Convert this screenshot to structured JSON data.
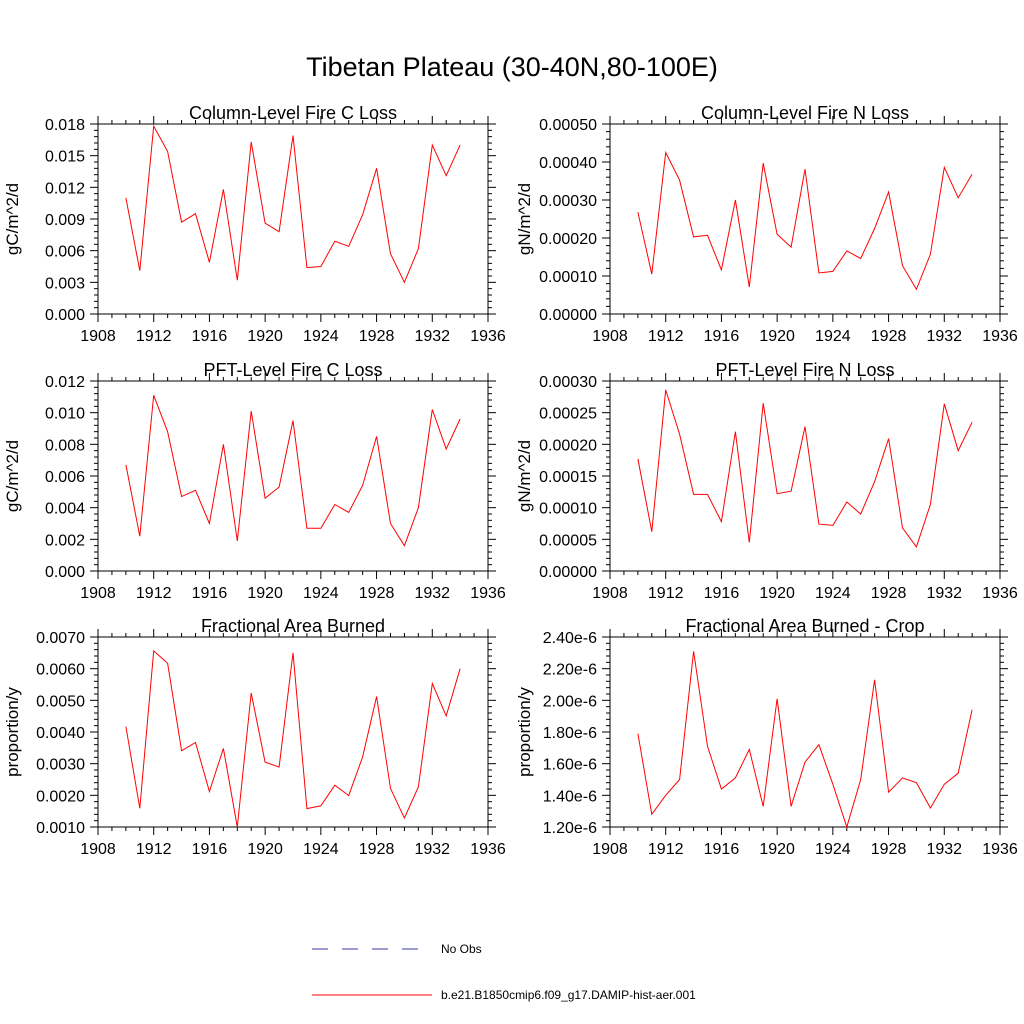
{
  "title": "Tibetan Plateau (30-40N,80-100E)",
  "colors": {
    "model": "#ff0000",
    "obs": "#3a3aa0",
    "axis": "#000000"
  },
  "legend": [
    {
      "label": "No Obs",
      "style": "dashed",
      "color": "#3a3aa0"
    },
    {
      "label": "b.e21.B1850cmip6.f09_g17.DAMIP-hist-aer.001",
      "style": "solid",
      "color": "#ff0000"
    }
  ],
  "chart_data": [
    {
      "type": "line",
      "title": "Column-Level Fire C Loss",
      "xlabel": "",
      "ylabel": "gC/m^2/d",
      "xlim": [
        1908,
        1936
      ],
      "ylim": [
        0.0,
        0.018
      ],
      "x_ticks": [
        "1908",
        "1912",
        "1916",
        "1920",
        "1924",
        "1928",
        "1932",
        "1936"
      ],
      "y_ticks": [
        "0.000",
        "0.003",
        "0.006",
        "0.009",
        "0.012",
        "0.015",
        "0.018"
      ],
      "x": [
        1910,
        1911,
        1912,
        1913,
        1914,
        1915,
        1916,
        1917,
        1918,
        1919,
        1920,
        1921,
        1922,
        1923,
        1924,
        1925,
        1926,
        1927,
        1928,
        1929,
        1930,
        1931,
        1932,
        1933,
        1934
      ],
      "series": [
        {
          "values": [
            0.011,
            0.0041,
            0.0178,
            0.0154,
            0.0087,
            0.0095,
            0.0049,
            0.0118,
            0.0032,
            0.0163,
            0.0086,
            0.0078,
            0.0169,
            0.0044,
            0.0045,
            0.0069,
            0.0064,
            0.0094,
            0.0138,
            0.0057,
            0.003,
            0.0062,
            0.016,
            0.0131,
            0.016
          ]
        }
      ]
    },
    {
      "type": "line",
      "title": "Column-Level Fire N Loss",
      "xlabel": "",
      "ylabel": "gN/m^2/d",
      "xlim": [
        1908,
        1936
      ],
      "ylim": [
        0.0,
        0.0005
      ],
      "x_ticks": [
        "1908",
        "1912",
        "1916",
        "1920",
        "1924",
        "1928",
        "1932",
        "1936"
      ],
      "y_ticks": [
        "0.00000",
        "0.00010",
        "0.00020",
        "0.00030",
        "0.00040",
        "0.00050"
      ],
      "x": [
        1910,
        1911,
        1912,
        1913,
        1914,
        1915,
        1916,
        1917,
        1918,
        1919,
        1920,
        1921,
        1922,
        1923,
        1924,
        1925,
        1926,
        1927,
        1928,
        1929,
        1930,
        1931,
        1932,
        1933,
        1934
      ],
      "series": [
        {
          "values": [
            0.000268,
            0.000105,
            0.000425,
            0.000352,
            0.000203,
            0.000207,
            0.000116,
            0.0003,
            7.1e-05,
            0.000397,
            0.00021,
            0.000176,
            0.000381,
            0.000108,
            0.000112,
            0.000166,
            0.000146,
            0.000225,
            0.000321,
            0.000127,
            6.5e-05,
            0.000157,
            0.000386,
            0.000306,
            0.000368
          ]
        }
      ]
    },
    {
      "type": "line",
      "title": "PFT-Level Fire C Loss",
      "xlabel": "",
      "ylabel": "gC/m^2/d",
      "xlim": [
        1908,
        1936
      ],
      "ylim": [
        0.0,
        0.012
      ],
      "x_ticks": [
        "1908",
        "1912",
        "1916",
        "1920",
        "1924",
        "1928",
        "1932",
        "1936"
      ],
      "y_ticks": [
        "0.000",
        "0.002",
        "0.004",
        "0.006",
        "0.008",
        "0.010",
        "0.012"
      ],
      "x": [
        1910,
        1911,
        1912,
        1913,
        1914,
        1915,
        1916,
        1917,
        1918,
        1919,
        1920,
        1921,
        1922,
        1923,
        1924,
        1925,
        1926,
        1927,
        1928,
        1929,
        1930,
        1931,
        1932,
        1933,
        1934
      ],
      "series": [
        {
          "values": [
            0.0067,
            0.0022,
            0.0111,
            0.0088,
            0.0047,
            0.0051,
            0.003,
            0.008,
            0.0019,
            0.0101,
            0.0046,
            0.0053,
            0.0095,
            0.0027,
            0.0027,
            0.0042,
            0.0037,
            0.0054,
            0.0085,
            0.003,
            0.0016,
            0.004,
            0.0102,
            0.0077,
            0.0096
          ]
        }
      ]
    },
    {
      "type": "line",
      "title": "PFT-Level Fire N Loss",
      "xlabel": "",
      "ylabel": "gN/m^2/d",
      "xlim": [
        1908,
        1936
      ],
      "ylim": [
        0.0,
        0.0003
      ],
      "x_ticks": [
        "1908",
        "1912",
        "1916",
        "1920",
        "1924",
        "1928",
        "1932",
        "1936"
      ],
      "y_ticks": [
        "0.00000",
        "0.00005",
        "0.00010",
        "0.00015",
        "0.00020",
        "0.00025",
        "0.00030"
      ],
      "x": [
        1910,
        1911,
        1912,
        1913,
        1914,
        1915,
        1916,
        1917,
        1918,
        1919,
        1920,
        1921,
        1922,
        1923,
        1924,
        1925,
        1926,
        1927,
        1928,
        1929,
        1930,
        1931,
        1932,
        1933,
        1934
      ],
      "series": [
        {
          "values": [
            0.000177,
            6.2e-05,
            0.000286,
            0.000216,
            0.000121,
            0.000121,
            7.8e-05,
            0.00022,
            4.5e-05,
            0.000265,
            0.000122,
            0.000126,
            0.000228,
            7.4e-05,
            7.2e-05,
            0.000109,
            9e-05,
            0.000141,
            0.000209,
            6.8e-05,
            3.8e-05,
            0.000105,
            0.000264,
            0.00019,
            0.000235
          ]
        }
      ]
    },
    {
      "type": "line",
      "title": "Fractional Area Burned",
      "xlabel": "",
      "ylabel": "proportion/y",
      "xlim": [
        1908,
        1936
      ],
      "ylim": [
        0.001,
        0.007
      ],
      "x_ticks": [
        "1908",
        "1912",
        "1916",
        "1920",
        "1924",
        "1928",
        "1932",
        "1936"
      ],
      "y_ticks": [
        "0.0010",
        "0.0020",
        "0.0030",
        "0.0040",
        "0.0050",
        "0.0060",
        "0.0070"
      ],
      "x": [
        1910,
        1911,
        1912,
        1913,
        1914,
        1915,
        1916,
        1917,
        1918,
        1919,
        1920,
        1921,
        1922,
        1923,
        1924,
        1925,
        1926,
        1927,
        1928,
        1929,
        1930,
        1931,
        1932,
        1933,
        1934
      ],
      "series": [
        {
          "values": [
            0.00417,
            0.00159,
            0.00656,
            0.00617,
            0.00341,
            0.00367,
            0.00212,
            0.00348,
            0.001,
            0.00523,
            0.00305,
            0.00289,
            0.0065,
            0.00158,
            0.00167,
            0.00232,
            0.00199,
            0.00321,
            0.00512,
            0.00222,
            0.00128,
            0.00227,
            0.00553,
            0.00451,
            0.006
          ]
        }
      ]
    },
    {
      "type": "line",
      "title": "Fractional Area Burned - Crop",
      "xlabel": "",
      "ylabel": "proportion/y",
      "xlim": [
        1908,
        1936
      ],
      "ylim": [
        1.2e-06,
        2.4e-06
      ],
      "x_ticks": [
        "1908",
        "1912",
        "1916",
        "1920",
        "1924",
        "1928",
        "1932",
        "1936"
      ],
      "y_ticks": [
        "1.20e-6",
        "1.40e-6",
        "1.60e-6",
        "1.80e-6",
        "2.00e-6",
        "2.20e-6",
        "2.40e-6"
      ],
      "x": [
        1910,
        1911,
        1912,
        1913,
        1914,
        1915,
        1916,
        1917,
        1918,
        1919,
        1920,
        1921,
        1922,
        1923,
        1924,
        1925,
        1926,
        1927,
        1928,
        1929,
        1930,
        1931,
        1932,
        1933,
        1934
      ],
      "series": [
        {
          "values": [
            1.79e-06,
            1.28e-06,
            1.4e-06,
            1.5e-06,
            2.31e-06,
            1.71e-06,
            1.44e-06,
            1.51e-06,
            1.69e-06,
            1.33e-06,
            2.01e-06,
            1.33e-06,
            1.61e-06,
            1.72e-06,
            1.47e-06,
            1.2e-06,
            1.5e-06,
            2.13e-06,
            1.42e-06,
            1.51e-06,
            1.48e-06,
            1.32e-06,
            1.47e-06,
            1.54e-06,
            1.94e-06
          ]
        }
      ]
    }
  ]
}
